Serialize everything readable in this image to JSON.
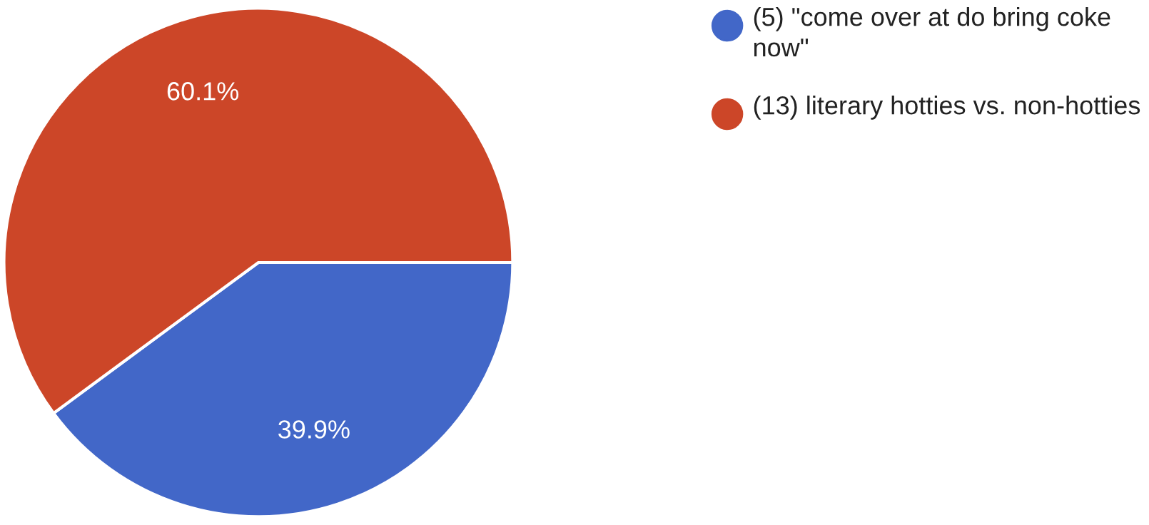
{
  "chart_data": {
    "type": "pie",
    "categories": [
      "(5) \"come over at do bring coke now\"",
      "(13) literary hotties vs. non-hotties"
    ],
    "values": [
      39.9,
      60.1
    ],
    "colors": [
      "#4267c8",
      "#cc4628"
    ],
    "value_labels": [
      "39.9%",
      "60.1%"
    ],
    "legend": "top right"
  }
}
